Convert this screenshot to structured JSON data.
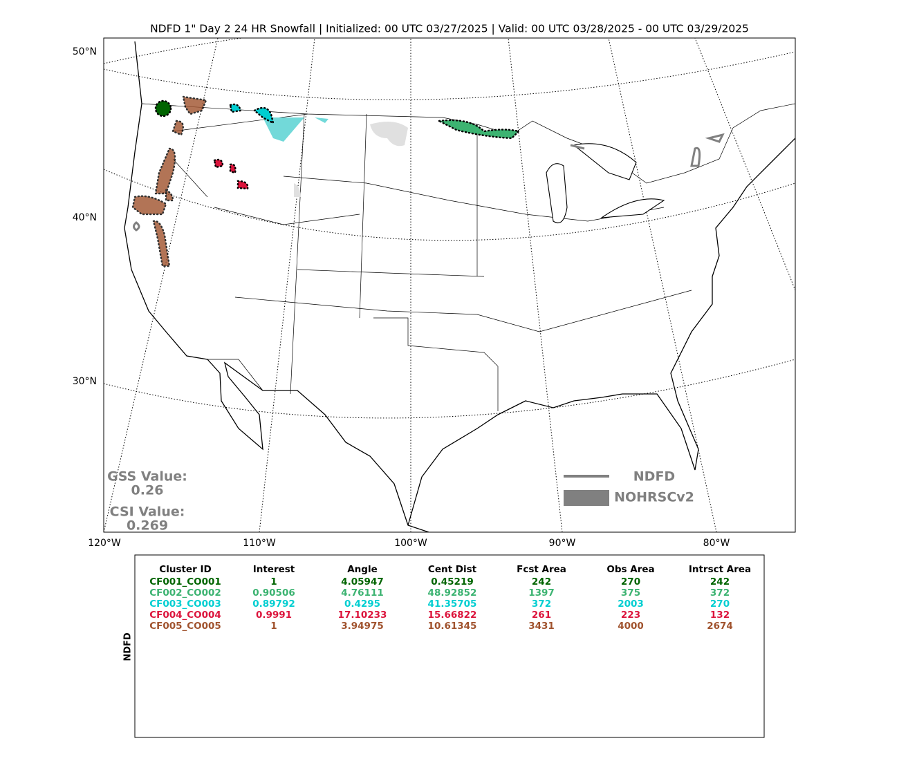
{
  "title": "NDFD 1\" Day 2 24 HR Snowfall | Initialized: 00 UTC 03/27/2025 | Valid: 00 UTC 03/28/2025 - 00 UTC 03/29/2025",
  "map": {
    "lat_labels": [
      "50°N",
      "40°N",
      "30°N"
    ],
    "lon_labels": [
      "120°W",
      "110°W",
      "100°W",
      "90°W",
      "80°W"
    ],
    "gss_label": "GSS Value:",
    "gss_value": "0.26",
    "csi_label": "CSI Value:",
    "csi_value": "0.269",
    "legend": [
      "NDFD",
      "NOHRSCv2"
    ]
  },
  "table": {
    "side_label": "NDFD",
    "header": [
      "Cluster ID",
      "Interest",
      "Angle",
      "Cent Dist",
      "Fcst Area",
      "Obs Area",
      "Intrsct Area"
    ],
    "row_colors": [
      "#006400",
      "#3cb371",
      "#00ced1",
      "#dc143c",
      "#a0522d"
    ],
    "rows": [
      [
        "CF001_CO001",
        "1",
        "4.05947",
        "0.45219",
        "242",
        "270",
        "242"
      ],
      [
        "CF002_CO002",
        "0.90506",
        "4.76111",
        "48.92852",
        "1397",
        "375",
        "372"
      ],
      [
        "CF003_CO003",
        "0.89792",
        "0.4295",
        "41.35705",
        "372",
        "2003",
        "270"
      ],
      [
        "CF004_CO004",
        "0.9991",
        "17.10233",
        "15.66822",
        "261",
        "223",
        "132"
      ],
      [
        "CF005_CO005",
        "1",
        "3.94975",
        "10.61345",
        "3431",
        "4000",
        "2674"
      ]
    ]
  }
}
